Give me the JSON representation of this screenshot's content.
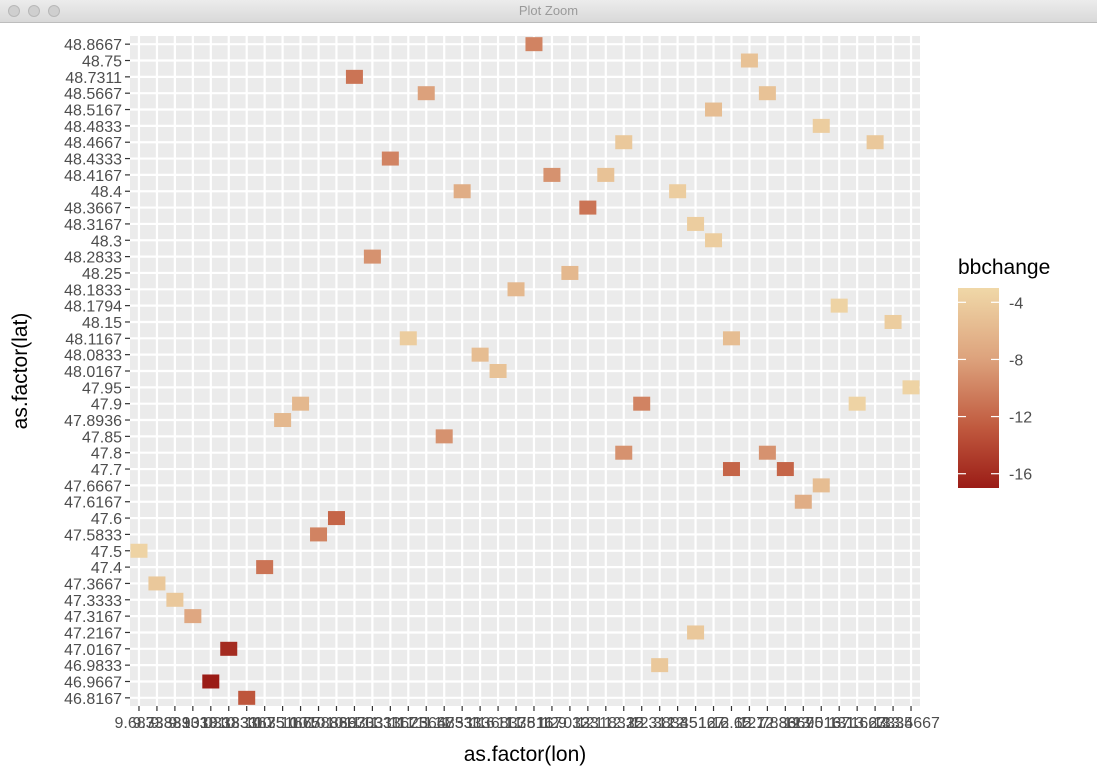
{
  "window": {
    "title": "Plot Zoom"
  },
  "chart_data": {
    "type": "heatmap",
    "title": "",
    "xlabel": "as.factor(lon)",
    "ylabel": "as.factor(lat)",
    "legend": {
      "title": "bbchange",
      "position": "right",
      "ticks": [
        -4,
        -8,
        -12,
        -16
      ],
      "range": [
        -17,
        -3
      ]
    },
    "colors": {
      "high": "#f0d8a8",
      "low": "#9b1c16",
      "panel": "#ebebeb",
      "grid": "#ffffff"
    },
    "x_categories": [
      "9.6833",
      "9.7333",
      "9.8833",
      "9.9333",
      "10.0333",
      "10.1833",
      "10.3167",
      "10.35",
      "10.5167",
      "10.65",
      "10.7833",
      "10.8667",
      "10.9333",
      "11.0333",
      "11.1167",
      "11.25",
      "11.3667",
      "11.4833",
      "11.5333",
      "11.6",
      "11.6833",
      "11.75",
      "11.8167",
      "11.9",
      "12.0333",
      "12.1",
      "12.1833",
      "12.25",
      "12.3",
      "12.3833",
      "12.45",
      "12.5167",
      "12.6",
      "12.65",
      "12.7",
      "12.7833",
      "12.8667",
      "12.95",
      "13.0167",
      "13.1",
      "13.1667",
      "13.2333",
      "13.35",
      "13.4667"
    ],
    "y_categories": [
      "46.8167",
      "46.9667",
      "46.9833",
      "47.0167",
      "47.2167",
      "47.3167",
      "47.3333",
      "47.3667",
      "47.4",
      "47.5",
      "47.5833",
      "47.6",
      "47.6167",
      "47.6667",
      "47.7",
      "47.8",
      "47.85",
      "47.8936",
      "47.9",
      "47.95",
      "48.0167",
      "48.0833",
      "48.1167",
      "48.15",
      "48.1794",
      "48.1833",
      "48.25",
      "48.2833",
      "48.3",
      "48.3167",
      "48.3667",
      "48.4",
      "48.4167",
      "48.4333",
      "48.4667",
      "48.4833",
      "48.5167",
      "48.5667",
      "48.7311",
      "48.75",
      "48.8667"
    ],
    "x_tick_labels": [
      "9.6833",
      "9.7333",
      "9.8833",
      "9.9333",
      "10.0333",
      "10.1833",
      "10.3167",
      "10.35",
      "10.5167",
      "10.65",
      "10.7833",
      "10.8667",
      "10.9333",
      "11.0333",
      "11.1167",
      "11.25",
      "11.3667",
      "11.4833",
      "11.5333",
      "11.6",
      "11.6833",
      "11.75",
      "11.8167",
      "11.9",
      "12.0333",
      "12.1",
      "12.1833",
      "12.25",
      "12.3",
      "12.3833",
      "12.45",
      "12.5167",
      "12.6",
      "12.65",
      "12.7",
      "12.7833",
      "12.8667",
      "12.95",
      "13.0167",
      "13.1",
      "13.1667",
      "13.2333",
      "13.35",
      "13.4667"
    ],
    "cells": [
      {
        "lon": "9.6833",
        "lat": "47.5",
        "value": -3.5
      },
      {
        "lon": "9.7333",
        "lat": "47.3667",
        "value": -4.5
      },
      {
        "lon": "9.8833",
        "lat": "47.3333",
        "value": -4.5
      },
      {
        "lon": "9.9333",
        "lat": "47.3167",
        "value": -7.5
      },
      {
        "lon": "10.0333",
        "lat": "46.9667",
        "value": -17
      },
      {
        "lon": "10.1833",
        "lat": "47.0167",
        "value": -16
      },
      {
        "lon": "10.3167",
        "lat": "46.8167",
        "value": -13
      },
      {
        "lon": "10.35",
        "lat": "47.4",
        "value": -11
      },
      {
        "lon": "10.5167",
        "lat": "47.8936",
        "value": -6
      },
      {
        "lon": "10.65",
        "lat": "47.9",
        "value": -6
      },
      {
        "lon": "10.7833",
        "lat": "47.5833",
        "value": -10
      },
      {
        "lon": "10.8667",
        "lat": "47.6",
        "value": -12
      },
      {
        "lon": "10.9333",
        "lat": "48.7311",
        "value": -11
      },
      {
        "lon": "11.0333",
        "lat": "48.2833",
        "value": -9
      },
      {
        "lon": "11.1167",
        "lat": "48.4333",
        "value": -10
      },
      {
        "lon": "11.25",
        "lat": "48.1167",
        "value": -4
      },
      {
        "lon": "11.3667",
        "lat": "48.5667",
        "value": -8
      },
      {
        "lon": "11.4833",
        "lat": "47.85",
        "value": -9
      },
      {
        "lon": "11.5333",
        "lat": "48.4",
        "value": -7
      },
      {
        "lon": "11.6",
        "lat": "48.0833",
        "value": -5.5
      },
      {
        "lon": "11.6833",
        "lat": "48.0167",
        "value": -5
      },
      {
        "lon": "11.75",
        "lat": "48.1833",
        "value": -6
      },
      {
        "lon": "11.8167",
        "lat": "48.8667",
        "value": -10
      },
      {
        "lon": "11.9",
        "lat": "48.4167",
        "value": -9
      },
      {
        "lon": "12.0333",
        "lat": "48.25",
        "value": -6
      },
      {
        "lon": "12.1",
        "lat": "48.3667",
        "value": -11
      },
      {
        "lon": "12.1833",
        "lat": "48.4167",
        "value": -5
      },
      {
        "lon": "12.25",
        "lat": "47.8",
        "value": -9
      },
      {
        "lon": "12.25",
        "lat": "48.4667",
        "value": -4.5
      },
      {
        "lon": "12.3",
        "lat": "47.9",
        "value": -10
      },
      {
        "lon": "12.3833",
        "lat": "46.9833",
        "value": -4.5
      },
      {
        "lon": "12.45",
        "lat": "48.4",
        "value": -4
      },
      {
        "lon": "12.5167",
        "lat": "47.2167",
        "value": -4.5
      },
      {
        "lon": "12.5167",
        "lat": "48.3167",
        "value": -4
      },
      {
        "lon": "12.6",
        "lat": "48.3",
        "value": -4
      },
      {
        "lon": "12.6",
        "lat": "48.5167",
        "value": -5.5
      },
      {
        "lon": "12.65",
        "lat": "47.7",
        "value": -12
      },
      {
        "lon": "12.65",
        "lat": "48.1167",
        "value": -5.5
      },
      {
        "lon": "12.7",
        "lat": "48.75",
        "value": -5
      },
      {
        "lon": "12.7833",
        "lat": "47.8",
        "value": -9
      },
      {
        "lon": "12.7833",
        "lat": "48.5667",
        "value": -5
      },
      {
        "lon": "12.8667",
        "lat": "47.7",
        "value": -12
      },
      {
        "lon": "12.95",
        "lat": "47.6167",
        "value": -7
      },
      {
        "lon": "13.0167",
        "lat": "47.6667",
        "value": -5.5
      },
      {
        "lon": "13.0167",
        "lat": "48.4833",
        "value": -4
      },
      {
        "lon": "13.1",
        "lat": "48.1794",
        "value": -3.5
      },
      {
        "lon": "13.1667",
        "lat": "47.9",
        "value": -3.5
      },
      {
        "lon": "13.2333",
        "lat": "48.4667",
        "value": -4.5
      },
      {
        "lon": "13.35",
        "lat": "48.15",
        "value": -4
      },
      {
        "lon": "13.4667",
        "lat": "47.95",
        "value": -3.5
      }
    ]
  }
}
